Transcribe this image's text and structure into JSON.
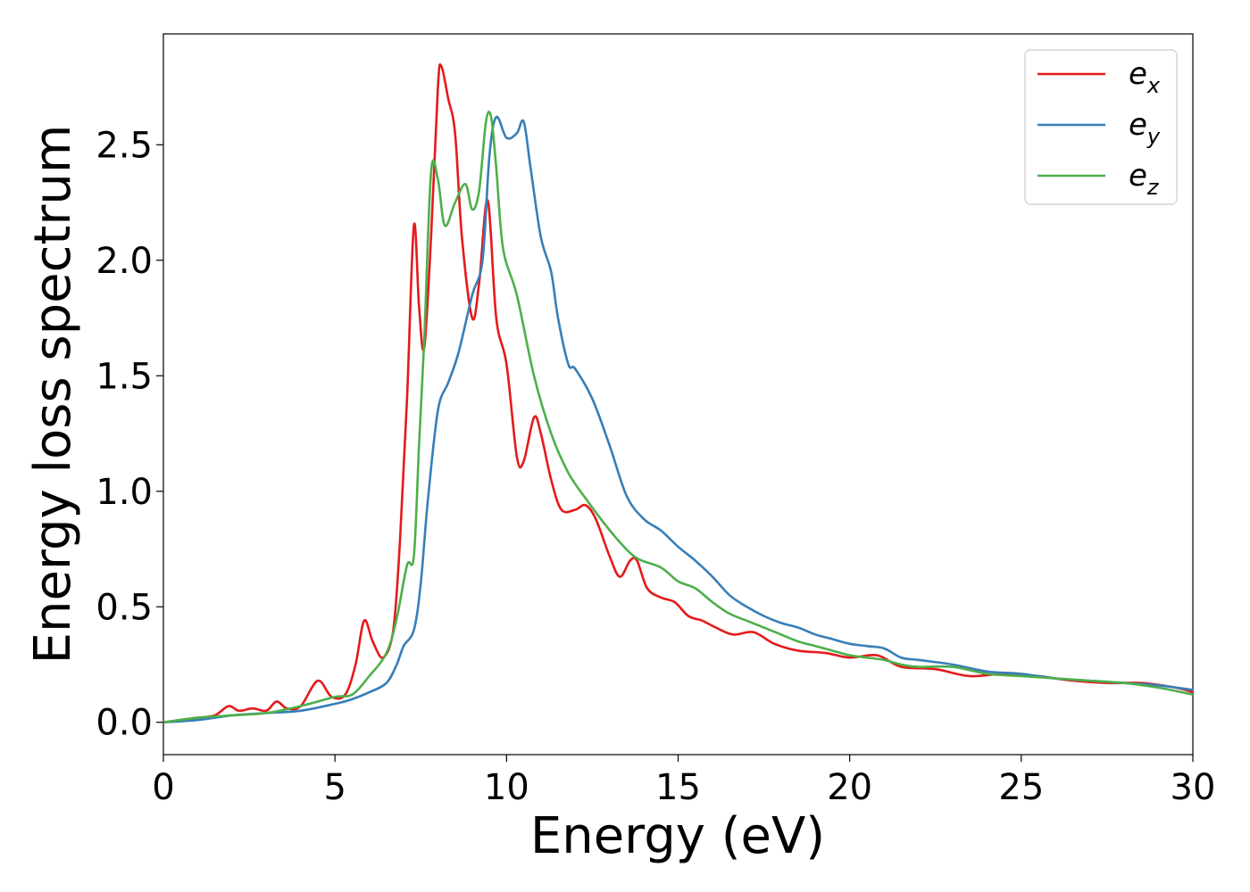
{
  "chart_data": {
    "type": "line",
    "title": "",
    "xlabel": "Energy (eV)",
    "ylabel": "Energy loss spectrum",
    "xlim": [
      0,
      30
    ],
    "ylim": [
      -0.14,
      2.98
    ],
    "xticks": [
      0,
      5,
      10,
      15,
      20,
      25,
      30
    ],
    "xtick_labels": [
      "0",
      "5",
      "10",
      "15",
      "20",
      "25",
      "30"
    ],
    "yticks": [
      0.0,
      0.5,
      1.0,
      1.5,
      2.0,
      2.5
    ],
    "ytick_labels": [
      "0.0",
      "0.5",
      "1.0",
      "1.5",
      "2.0",
      "2.5"
    ],
    "grid": false,
    "legend_position": "top-right",
    "series": [
      {
        "name": "e",
        "sub": "x",
        "color": "#e41a1c",
        "x": [
          0,
          0.5,
          1,
          1.5,
          1.9,
          2.2,
          2.6,
          3.0,
          3.3,
          3.6,
          4.0,
          4.5,
          4.9,
          5.3,
          5.6,
          5.85,
          6.1,
          6.4,
          6.7,
          6.9,
          7.1,
          7.3,
          7.45,
          7.6,
          7.8,
          8.0,
          8.1,
          8.3,
          8.5,
          8.7,
          9.0,
          9.2,
          9.45,
          9.7,
          10.0,
          10.3,
          10.5,
          10.8,
          11.0,
          11.3,
          11.6,
          12.0,
          12.3,
          12.6,
          13.0,
          13.3,
          13.6,
          13.8,
          14.1,
          14.5,
          14.9,
          15.3,
          15.7,
          16.1,
          16.6,
          17.2,
          17.8,
          18.5,
          19.3,
          20.0,
          20.8,
          21.5,
          22.5,
          23.5,
          24.5,
          25.5,
          26.5,
          27.5,
          28.5,
          29.5,
          30.0
        ],
        "y": [
          0.0,
          0.01,
          0.02,
          0.03,
          0.07,
          0.05,
          0.06,
          0.05,
          0.09,
          0.06,
          0.07,
          0.18,
          0.11,
          0.12,
          0.25,
          0.44,
          0.35,
          0.28,
          0.4,
          0.8,
          1.4,
          2.15,
          1.8,
          1.62,
          2.1,
          2.75,
          2.84,
          2.7,
          2.55,
          2.1,
          1.75,
          1.9,
          2.26,
          1.75,
          1.55,
          1.15,
          1.13,
          1.32,
          1.25,
          1.05,
          0.92,
          0.92,
          0.94,
          0.88,
          0.72,
          0.63,
          0.7,
          0.7,
          0.58,
          0.54,
          0.52,
          0.46,
          0.44,
          0.41,
          0.38,
          0.39,
          0.34,
          0.31,
          0.3,
          0.28,
          0.29,
          0.24,
          0.23,
          0.2,
          0.21,
          0.2,
          0.18,
          0.17,
          0.17,
          0.15,
          0.13
        ]
      },
      {
        "name": "e",
        "sub": "y",
        "color": "#377eb8",
        "x": [
          0,
          1,
          2,
          3,
          4,
          5,
          5.5,
          6.0,
          6.5,
          6.8,
          7.0,
          7.3,
          7.5,
          7.7,
          8.0,
          8.3,
          8.6,
          9.0,
          9.3,
          9.5,
          9.7,
          10.0,
          10.3,
          10.5,
          10.7,
          11.0,
          11.3,
          11.5,
          11.8,
          12.0,
          12.5,
          13.0,
          13.5,
          14.0,
          14.5,
          15.0,
          15.5,
          16.0,
          16.5,
          17.0,
          17.5,
          18.0,
          18.5,
          19.0,
          19.5,
          20.0,
          20.5,
          21.0,
          21.5,
          22.0,
          23.0,
          24.0,
          25.0,
          26.0,
          27.0,
          28.0,
          29.0,
          30.0
        ],
        "y": [
          0.0,
          0.01,
          0.03,
          0.04,
          0.05,
          0.08,
          0.1,
          0.13,
          0.17,
          0.25,
          0.33,
          0.4,
          0.6,
          0.95,
          1.35,
          1.47,
          1.6,
          1.85,
          2.0,
          2.45,
          2.62,
          2.53,
          2.55,
          2.6,
          2.4,
          2.1,
          1.95,
          1.75,
          1.55,
          1.53,
          1.4,
          1.2,
          0.98,
          0.88,
          0.83,
          0.76,
          0.7,
          0.63,
          0.55,
          0.5,
          0.46,
          0.43,
          0.41,
          0.38,
          0.36,
          0.34,
          0.33,
          0.32,
          0.28,
          0.27,
          0.25,
          0.22,
          0.21,
          0.19,
          0.18,
          0.17,
          0.16,
          0.14
        ]
      },
      {
        "name": "e",
        "sub": "z",
        "color": "#4daf4a",
        "x": [
          0,
          1,
          2,
          3,
          4,
          5,
          5.5,
          6.0,
          6.5,
          6.8,
          7.1,
          7.3,
          7.45,
          7.6,
          7.8,
          8.0,
          8.2,
          8.5,
          8.8,
          9.0,
          9.2,
          9.4,
          9.55,
          9.7,
          9.9,
          10.3,
          10.8,
          11.3,
          11.8,
          12.3,
          12.8,
          13.3,
          13.8,
          14.5,
          15.0,
          15.5,
          16.0,
          16.5,
          17.0,
          17.5,
          18.0,
          18.5,
          19.0,
          19.5,
          20.0,
          20.5,
          21.0,
          21.5,
          22.0,
          23.0,
          24.0,
          25.0,
          26.0,
          27.0,
          28.0,
          29.0,
          30.0
        ],
        "y": [
          0.0,
          0.02,
          0.03,
          0.04,
          0.07,
          0.11,
          0.12,
          0.2,
          0.3,
          0.45,
          0.68,
          0.72,
          1.2,
          1.65,
          2.38,
          2.35,
          2.15,
          2.25,
          2.33,
          2.22,
          2.3,
          2.6,
          2.62,
          2.4,
          2.05,
          1.85,
          1.5,
          1.25,
          1.08,
          0.97,
          0.87,
          0.78,
          0.71,
          0.67,
          0.61,
          0.58,
          0.52,
          0.47,
          0.44,
          0.41,
          0.38,
          0.35,
          0.33,
          0.31,
          0.29,
          0.28,
          0.27,
          0.25,
          0.24,
          0.24,
          0.21,
          0.2,
          0.19,
          0.18,
          0.17,
          0.15,
          0.12
        ]
      }
    ]
  }
}
